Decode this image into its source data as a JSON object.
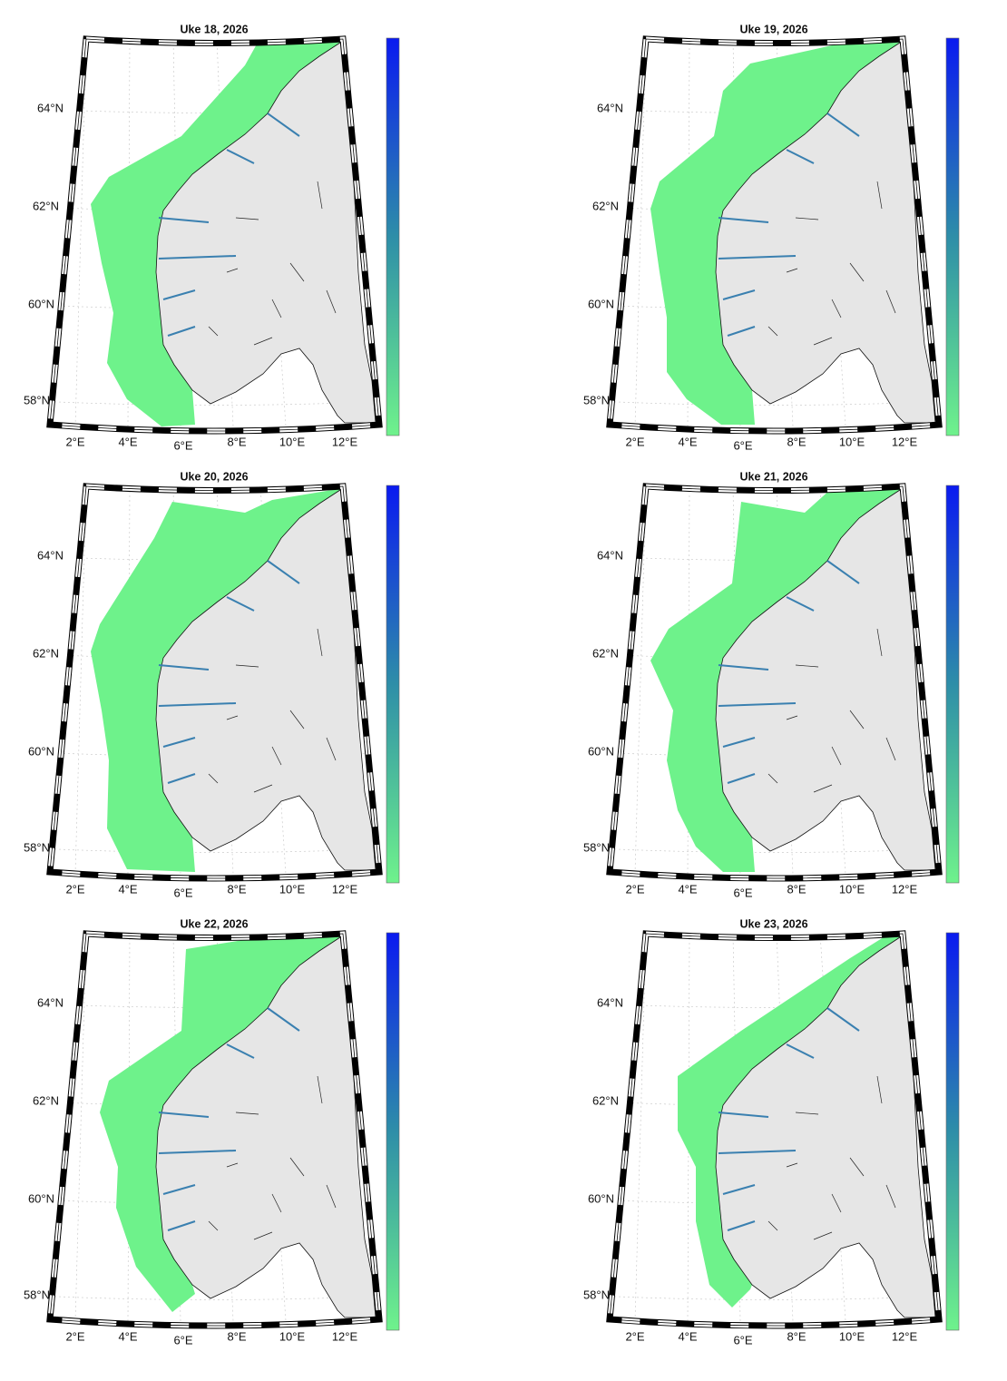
{
  "panels": [
    {
      "title": "Uke 18, 2026"
    },
    {
      "title": "Uke 19, 2026"
    },
    {
      "title": "Uke 20, 2026"
    },
    {
      "title": "Uke 21, 2026"
    },
    {
      "title": "Uke 22, 2026"
    },
    {
      "title": "Uke 23, 2026"
    }
  ],
  "lat_labels": [
    "64°N",
    "62°N",
    "60°N",
    "58°N"
  ],
  "lon_labels": [
    "2°E",
    "4°E",
    "6°E",
    "8°E",
    "10°E",
    "12°E"
  ]
}
